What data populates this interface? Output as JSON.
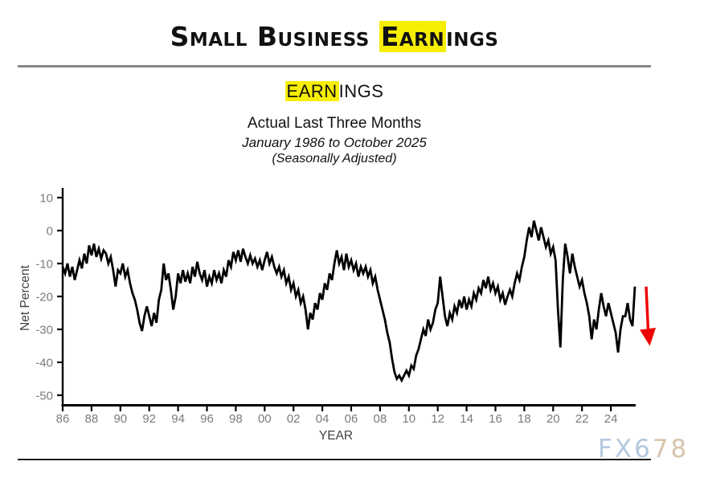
{
  "header": {
    "title_parts": {
      "pre": "Small Business ",
      "highlight": "Earn",
      "post": "ings"
    }
  },
  "chart_data": {
    "type": "line",
    "title_parts": {
      "highlight": "EARN",
      "post": "INGS"
    },
    "subtitle1": "Actual Last Three Months",
    "subtitle2": "January 1986 to October 2025",
    "subtitle3": "(Seasonally Adjusted)",
    "xlabel": "YEAR",
    "ylabel": "Net Percent",
    "ylim": [
      -50,
      10
    ],
    "xlim": [
      1986,
      2025.9
    ],
    "grid": false,
    "legend": "none",
    "y_ticks": [
      10,
      0,
      -10,
      -20,
      -30,
      -40,
      -50
    ],
    "x_tick_years": [
      1986,
      1988,
      1990,
      1992,
      1994,
      1996,
      1998,
      2000,
      2002,
      2004,
      2006,
      2008,
      2010,
      2012,
      2014,
      2016,
      2018,
      2020,
      2022,
      2024
    ],
    "x_tick_labels": [
      "86",
      "88",
      "90",
      "92",
      "94",
      "96",
      "98",
      "00",
      "02",
      "04",
      "06",
      "08",
      "10",
      "12",
      "14",
      "16",
      "18",
      "20",
      "22",
      "24"
    ],
    "line_color": "#000000",
    "highlight_color": "#f7ee05",
    "series": {
      "x_start": 1986,
      "x_step_years": 0.1666667,
      "x_end": 2025.67,
      "values": [
        -11,
        -13,
        -10,
        -14,
        -11,
        -15,
        -12,
        -9,
        -11.5,
        -7,
        -10,
        -4.5,
        -7.5,
        -4,
        -8,
        -5.5,
        -8.5,
        -6,
        -7,
        -10,
        -8,
        -12,
        -17,
        -12,
        -13,
        -10,
        -14,
        -12,
        -16,
        -19,
        -21,
        -24,
        -28,
        -30.5,
        -26,
        -23,
        -26,
        -29,
        -25,
        -28,
        -21,
        -18,
        -10,
        -15,
        -13,
        -18,
        -24,
        -20,
        -13,
        -16,
        -12,
        -15.5,
        -13,
        -16,
        -11,
        -14,
        -9.5,
        -13,
        -15,
        -12,
        -17,
        -14,
        -16,
        -12,
        -15,
        -13,
        -16,
        -12,
        -14,
        -9,
        -11,
        -6.5,
        -9,
        -6,
        -9.5,
        -5.5,
        -8,
        -10,
        -7.5,
        -10,
        -8.5,
        -11,
        -9,
        -12,
        -9,
        -6.5,
        -10,
        -8,
        -11,
        -13,
        -11,
        -14,
        -12,
        -16,
        -14,
        -18,
        -16,
        -20,
        -18,
        -22,
        -20,
        -24,
        -30,
        -25,
        -27,
        -22,
        -24,
        -19,
        -21,
        -16,
        -18,
        -13,
        -15,
        -10,
        -6,
        -10,
        -8,
        -12,
        -7,
        -11,
        -9,
        -12,
        -10,
        -14,
        -11,
        -13,
        -11,
        -14,
        -12,
        -16,
        -14,
        -18,
        -21,
        -24,
        -27,
        -31,
        -34,
        -39,
        -43,
        -45,
        -44,
        -45.5,
        -44,
        -42.5,
        -44,
        -41,
        -42,
        -38,
        -36,
        -33,
        -30,
        -32,
        -27,
        -30,
        -28,
        -24,
        -22,
        -14,
        -20,
        -26,
        -29,
        -25,
        -27,
        -23,
        -25,
        -21,
        -23.5,
        -20,
        -24,
        -21,
        -23,
        -19,
        -21,
        -17.5,
        -19,
        -15,
        -17.5,
        -14,
        -18,
        -16,
        -19,
        -17,
        -21,
        -19,
        -22.5,
        -20,
        -18,
        -20,
        -16,
        -13,
        -15,
        -11,
        -8,
        -3,
        1,
        -2,
        3,
        0,
        -3,
        1,
        -2,
        -5,
        -3,
        -7,
        -5,
        -9,
        -24,
        -35.5,
        -15,
        -4,
        -8,
        -13,
        -7,
        -11,
        -14,
        -17,
        -15,
        -19,
        -22,
        -26,
        -33,
        -27,
        -30,
        -24,
        -19,
        -23,
        -26,
        -22,
        -25,
        -28,
        -31,
        -37,
        -30,
        -26,
        -26,
        -22,
        -27,
        -29,
        -17
      ]
    },
    "annotation_arrow": {
      "direction": "down",
      "color": "#ee0000",
      "from_value": -17,
      "to_value": -35
    }
  },
  "watermark": {
    "part1": "FX6",
    "part2": "78",
    "color1": "#b5c8e0",
    "color2": "#d8c4ac"
  }
}
